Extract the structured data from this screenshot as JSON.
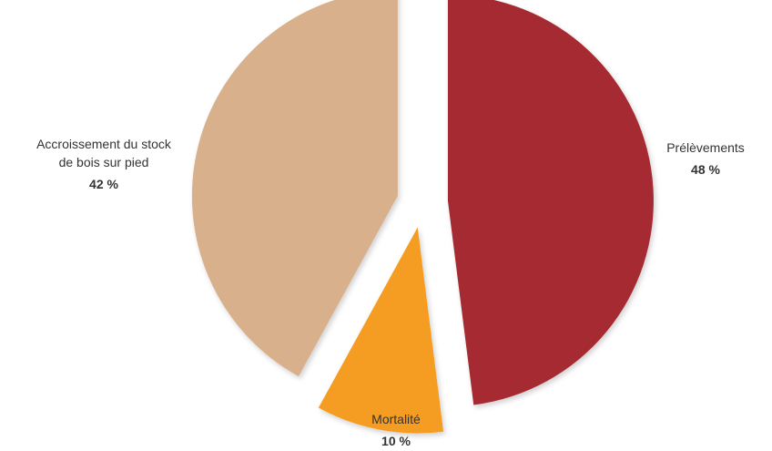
{
  "chart_data": {
    "type": "pie",
    "title": "",
    "exploded": true,
    "start_angle_deg": 0,
    "direction": "clockwise",
    "slices": [
      {
        "label": "Prélèvements",
        "value": 48,
        "value_label": "48 %",
        "color": "#a62931"
      },
      {
        "label": "Mortalité",
        "value": 10,
        "value_label": "10 %",
        "color": "#f59c22"
      },
      {
        "label": "Accroissement du stock de bois sur pied",
        "label_lines": [
          "Accroissement du stock",
          "de bois sur pied"
        ],
        "value": 42,
        "value_label": "42 %",
        "color": "#d8b08c"
      }
    ]
  }
}
